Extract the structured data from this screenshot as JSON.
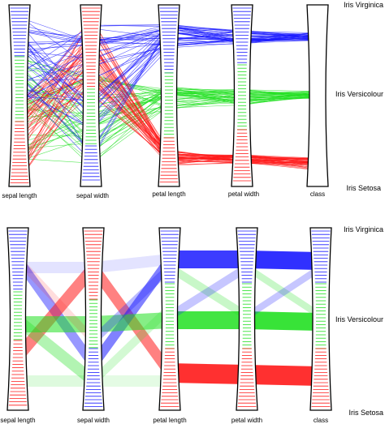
{
  "colors": {
    "iris_virginica": "#1a1aff",
    "iris_versicolour": "#22e022",
    "iris_setosa": "#ff1a1a",
    "axis_outline": "#000000"
  },
  "panels": [
    {
      "name": "top",
      "style": "lines",
      "axes": [
        {
          "key": "sepal_length",
          "label": "sepal length"
        },
        {
          "key": "sepal_width",
          "label": "sepal width"
        },
        {
          "key": "petal_length",
          "label": "petal length"
        },
        {
          "key": "petal_width",
          "label": "petal width"
        },
        {
          "key": "class",
          "label": "class"
        }
      ],
      "class_labels": [
        "Iris Virginica",
        "Iris Versicolour",
        "Iris Setosa"
      ]
    },
    {
      "name": "bottom",
      "style": "bands",
      "axes": [
        {
          "key": "sepal_length",
          "label": "sepal length"
        },
        {
          "key": "sepal_width",
          "label": "sepal width"
        },
        {
          "key": "petal_length",
          "label": "petal length"
        },
        {
          "key": "petal_width",
          "label": "petal width"
        },
        {
          "key": "class",
          "label": "class"
        }
      ],
      "class_labels": [
        "Iris Virginica",
        "Iris Versicolour",
        "Iris Setosa"
      ]
    }
  ]
}
